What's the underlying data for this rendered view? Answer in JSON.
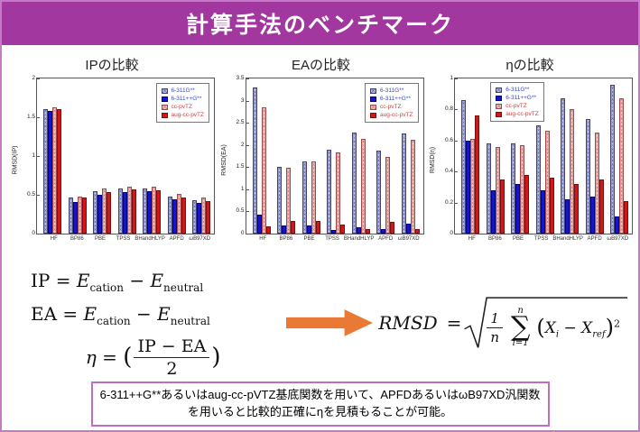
{
  "slide": {
    "title": "計算手法のベンチマーク"
  },
  "colors": {
    "titlebar": "#a2379f",
    "slide_border": "#c47ac4",
    "note_border": "#c06ec0",
    "arrow": "#e87a35",
    "plot_border": "#555555"
  },
  "series_styles": [
    {
      "name": "6-311G**",
      "fill": "#b6bcdf",
      "edge": "#44446a",
      "label_color": "#3b48c8",
      "pattern": "checker-blue"
    },
    {
      "name": "6-311++G**",
      "fill": "#1515cf",
      "edge": "#000080",
      "label_color": "#3b48c8",
      "pattern": ""
    },
    {
      "name": "cc-pvTZ",
      "fill": "#eac6c4",
      "edge": "#9c4a4a",
      "label_color": "#d04040",
      "pattern": "checker-pink"
    },
    {
      "name": "aug-cc-pvTZ",
      "fill": "#d01818",
      "edge": "#7a0f0f",
      "label_color": "#d04040",
      "pattern": ""
    }
  ],
  "chart_data": [
    {
      "type": "bar",
      "title": "IPの比較",
      "ylabel": "RMSD(IP)",
      "ylim": [
        0,
        2
      ],
      "yticks": [
        0,
        0.5,
        1,
        1.5,
        2
      ],
      "grid": false,
      "legend_position": "top-right",
      "categories": [
        "HF",
        "BP86",
        "PBE",
        "TPSS",
        "BHandHLYP",
        "APFD",
        "ωB97XD"
      ],
      "series": [
        {
          "name": "6-311G**",
          "values": [
            1.6,
            0.46,
            0.55,
            0.58,
            0.58,
            0.48,
            0.43
          ]
        },
        {
          "name": "6-311++G**",
          "values": [
            1.58,
            0.41,
            0.5,
            0.54,
            0.55,
            0.44,
            0.39
          ]
        },
        {
          "name": "cc-pvTZ",
          "values": [
            1.63,
            0.48,
            0.58,
            0.61,
            0.61,
            0.51,
            0.46
          ]
        },
        {
          "name": "aug-cc-pvTZ",
          "values": [
            1.6,
            0.47,
            0.53,
            0.57,
            0.56,
            0.47,
            0.42
          ]
        }
      ]
    },
    {
      "type": "bar",
      "title": "EAの比較",
      "ylabel": "RMSD(EA)",
      "ylim": [
        0,
        3.5
      ],
      "yticks": [
        0,
        0.5,
        1,
        1.5,
        2,
        2.5,
        3,
        3.5
      ],
      "grid": false,
      "legend_position": "top-right",
      "categories": [
        "HF",
        "BP86",
        "PBE",
        "TPSS",
        "BHandHLYP",
        "APFD",
        "ωB97XD"
      ],
      "series": [
        {
          "name": "6-311G**",
          "values": [
            3.3,
            1.51,
            1.63,
            1.89,
            2.27,
            1.88,
            2.26
          ]
        },
        {
          "name": "6-311++G**",
          "values": [
            0.42,
            0.19,
            0.19,
            0.09,
            0.15,
            0.1,
            0.22
          ]
        },
        {
          "name": "cc-pvTZ",
          "values": [
            2.84,
            1.48,
            1.62,
            1.83,
            2.14,
            1.74,
            2.11
          ]
        },
        {
          "name": "aug-cc-pvTZ",
          "values": [
            0.17,
            0.28,
            0.29,
            0.21,
            0.1,
            0.27,
            0.1
          ]
        }
      ]
    },
    {
      "type": "bar",
      "title": "ηの比較",
      "ylabel": "RMSD(η)",
      "ylim": [
        0,
        1
      ],
      "yticks": [
        0,
        0.2,
        0.4,
        0.6,
        0.8,
        1
      ],
      "grid": false,
      "legend_position": "top-left-center",
      "categories": [
        "HF",
        "BP86",
        "PBE",
        "TPSS",
        "BHandHLYP",
        "APFD",
        "ωB97XD"
      ],
      "series": [
        {
          "name": "6-311G**",
          "values": [
            0.86,
            0.58,
            0.58,
            0.7,
            0.87,
            0.74,
            0.96
          ]
        },
        {
          "name": "6-311++G**",
          "values": [
            0.6,
            0.28,
            0.32,
            0.28,
            0.22,
            0.24,
            0.11
          ]
        },
        {
          "name": "cc-pvTZ",
          "values": [
            0.61,
            0.56,
            0.57,
            0.66,
            0.8,
            0.65,
            0.87
          ]
        },
        {
          "name": "aug-cc-pvTZ",
          "values": [
            0.76,
            0.35,
            0.38,
            0.36,
            0.32,
            0.35,
            0.21
          ]
        }
      ]
    }
  ],
  "equations": {
    "ip": {
      "lhs": "IP",
      "rel": "=",
      "e1": "E",
      "sub1": "cation",
      "op": "−",
      "e2": "E",
      "sub2": "neutral"
    },
    "ea": {
      "lhs": "EA",
      "rel": "=",
      "e1": "E",
      "sub1": "cation",
      "op": "−",
      "e2": "E",
      "sub2": "neutral"
    },
    "eta": {
      "lhs": "η",
      "rel": "=",
      "open": "(",
      "num": "IP − EA",
      "den": "2",
      "close": ")"
    },
    "rmsd": {
      "lhs": "RMSD",
      "rel": "=",
      "frac_num": "1",
      "frac_den": "n",
      "sum": "∑",
      "sum_top": "n",
      "sum_bot": "i=1",
      "open": "(",
      "x1": "X",
      "x1_sub": "i",
      "op": "−",
      "x2": "X",
      "x2_sub": "ref",
      "close": ")",
      "exp": "2"
    }
  },
  "note": {
    "text": "6-311++G**あるいはaug-cc-pVTZ基底関数を用いて、APFDあるいはωB97XD汎関数を用いると比較的正確にηを見積もることが可能。"
  }
}
